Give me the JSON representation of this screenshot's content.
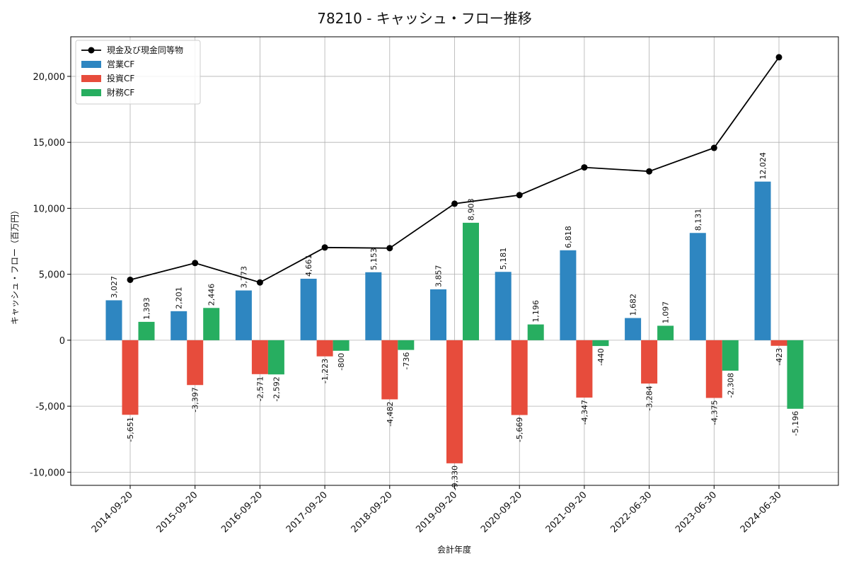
{
  "chart_data": {
    "type": "bar",
    "title": "78210 - キャッシュ・フロー推移",
    "xlabel": "会計年度",
    "ylabel": "キャッシュ・フロー（百万円）",
    "ylim": [
      -11000,
      23000
    ],
    "yticks": [
      -10000,
      -5000,
      0,
      5000,
      10000,
      15000,
      20000
    ],
    "ytick_labels": [
      "-10,000",
      "-5,000",
      "0",
      "5,000",
      "10,000",
      "15,000",
      "20,000"
    ],
    "grid": true,
    "legend_position": "top-left",
    "categories": [
      "2014-09-20",
      "2015-09-20",
      "2016-09-20",
      "2017-09-20",
      "2018-09-20",
      "2019-09-20",
      "2020-09-20",
      "2021-09-20",
      "2022-06-30",
      "2023-06-30",
      "2024-06-30"
    ],
    "series": [
      {
        "name": "営業CF",
        "kind": "bar",
        "color": "#2e86c1",
        "values": [
          3027,
          2201,
          3773,
          4661,
          5153,
          3857,
          5181,
          6818,
          1682,
          8131,
          12024
        ],
        "labels": [
          "3,027",
          "2,201",
          "3,773",
          "4,661",
          "5,153",
          "3,857",
          "5,181",
          "6,818",
          "1,682",
          "8,131",
          "12,024"
        ]
      },
      {
        "name": "投資CF",
        "kind": "bar",
        "color": "#e74c3c",
        "values": [
          -5651,
          -3397,
          -2571,
          -1223,
          -4482,
          -9330,
          -5669,
          -4347,
          -3284,
          -4375,
          -423
        ],
        "labels": [
          "-5,651",
          "-3,397",
          "-2,571",
          "-1,223",
          "-4,482",
          "-9,330",
          "-5,669",
          "-4,347",
          "-3,284",
          "-4,375",
          "-423"
        ]
      },
      {
        "name": "財務CF",
        "kind": "bar",
        "color": "#27ae60",
        "values": [
          1393,
          2446,
          -2592,
          -800,
          -736,
          8903,
          1196,
          -440,
          1097,
          -2308,
          -5196
        ],
        "labels": [
          "1,393",
          "2,446",
          "-2,592",
          "-800",
          "-736",
          "8,903",
          "1,196",
          "-440",
          "1,097",
          "-2,308",
          "-5,196"
        ]
      },
      {
        "name": "現金及び現金同等物",
        "kind": "line",
        "color": "#000000",
        "values": [
          4580,
          5850,
          4380,
          7030,
          6980,
          10350,
          11000,
          13100,
          12800,
          14580,
          21450
        ]
      }
    ]
  }
}
